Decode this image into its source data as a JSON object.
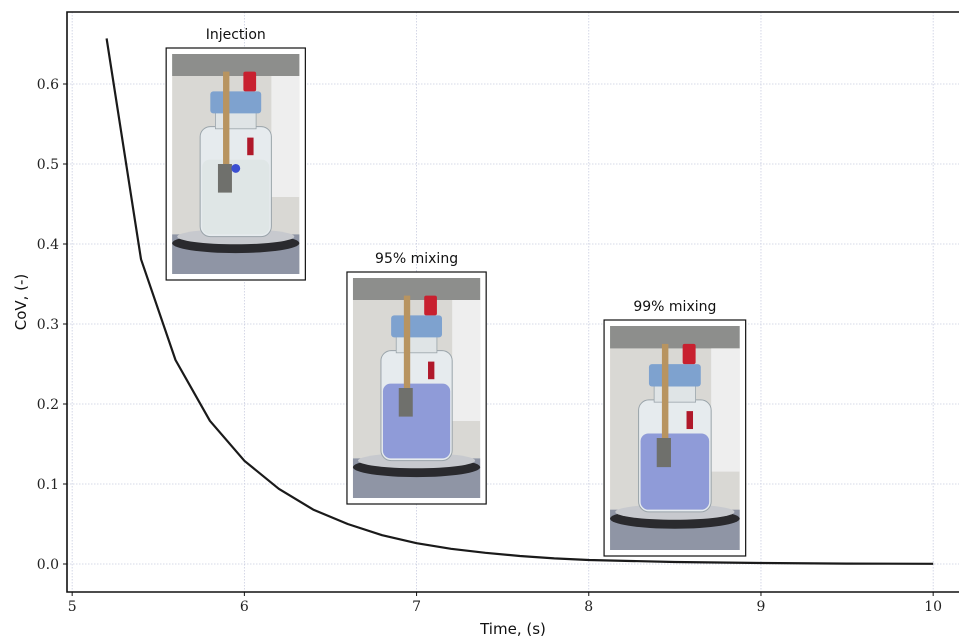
{
  "chart_data": {
    "type": "line",
    "xlabel": "Time, (s)",
    "ylabel": "CoV, (-)",
    "xlim": [
      4.97,
      10.15
    ],
    "ylim": [
      -0.035,
      0.69
    ],
    "xticks": [
      5,
      6,
      7,
      8,
      9,
      10
    ],
    "yticks": [
      0.0,
      0.1,
      0.2,
      0.3,
      0.4,
      0.5,
      0.6
    ],
    "grid": true,
    "series": [
      {
        "color": "#1a1a1a",
        "x": [
          5.2,
          5.4,
          5.6,
          5.8,
          6.0,
          6.2,
          6.4,
          6.6,
          6.8,
          7.0,
          7.2,
          7.4,
          7.6,
          7.8,
          8.0,
          8.5,
          9.0,
          9.5,
          10.0
        ],
        "y": [
          0.657,
          0.381,
          0.255,
          0.179,
          0.129,
          0.094,
          0.068,
          0.05,
          0.036,
          0.026,
          0.019,
          0.014,
          0.01,
          0.007,
          0.005,
          0.0025,
          0.0012,
          0.0005,
          0.0002
        ]
      }
    ],
    "annotations": [
      {
        "text": "Injection",
        "image_x_center": 5.95,
        "image_y_top": 0.645,
        "image_y_bottom": 0.355,
        "liquid": "clear"
      },
      {
        "text": "95% mixing",
        "image_x_center": 7.0,
        "image_y_top": 0.365,
        "image_y_bottom": 0.075,
        "liquid": "blue"
      },
      {
        "text": "99% mixing",
        "image_x_center": 8.5,
        "image_y_top": 0.305,
        "image_y_bottom": 0.01,
        "liquid": "blue"
      }
    ]
  }
}
